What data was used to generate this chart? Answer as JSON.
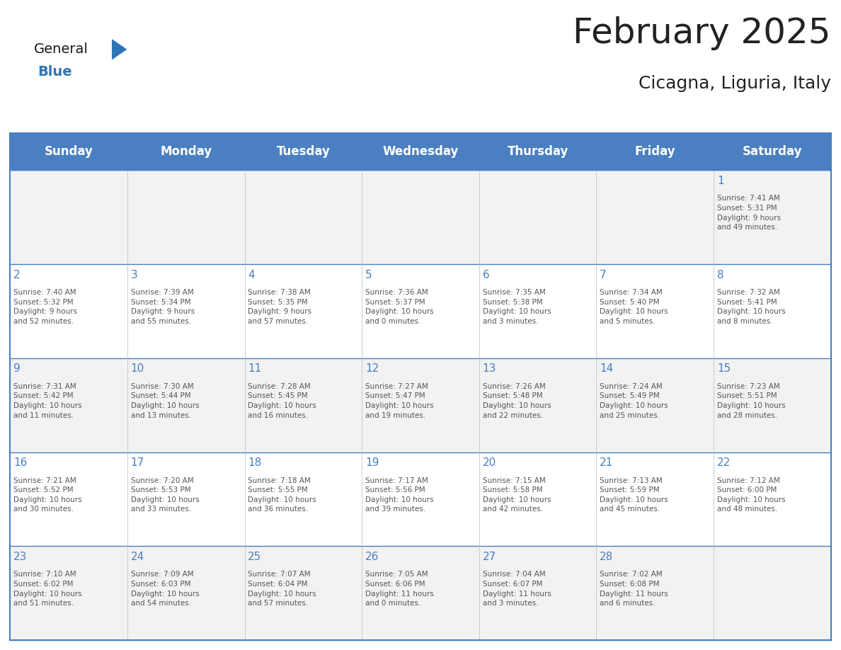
{
  "title": "February 2025",
  "subtitle": "Cicagna, Liguria, Italy",
  "days_of_week": [
    "Sunday",
    "Monday",
    "Tuesday",
    "Wednesday",
    "Thursday",
    "Friday",
    "Saturday"
  ],
  "header_bg": "#4a7fc1",
  "header_text": "#FFFFFF",
  "cell_bg_odd": "#F2F2F2",
  "cell_bg_even": "#FFFFFF",
  "border_color": "#4a7fc1",
  "day_number_color": "#4a7fc1",
  "text_color": "#555555",
  "title_color": "#222222",
  "line_color": "#4a7fc1",
  "weeks": [
    [
      {
        "day": null,
        "sunrise": null,
        "sunset": null,
        "daylight": null
      },
      {
        "day": null,
        "sunrise": null,
        "sunset": null,
        "daylight": null
      },
      {
        "day": null,
        "sunrise": null,
        "sunset": null,
        "daylight": null
      },
      {
        "day": null,
        "sunrise": null,
        "sunset": null,
        "daylight": null
      },
      {
        "day": null,
        "sunrise": null,
        "sunset": null,
        "daylight": null
      },
      {
        "day": null,
        "sunrise": null,
        "sunset": null,
        "daylight": null
      },
      {
        "day": 1,
        "sunrise": "7:41 AM",
        "sunset": "5:31 PM",
        "daylight": "9 hours\nand 49 minutes."
      }
    ],
    [
      {
        "day": 2,
        "sunrise": "7:40 AM",
        "sunset": "5:32 PM",
        "daylight": "9 hours\nand 52 minutes."
      },
      {
        "day": 3,
        "sunrise": "7:39 AM",
        "sunset": "5:34 PM",
        "daylight": "9 hours\nand 55 minutes."
      },
      {
        "day": 4,
        "sunrise": "7:38 AM",
        "sunset": "5:35 PM",
        "daylight": "9 hours\nand 57 minutes."
      },
      {
        "day": 5,
        "sunrise": "7:36 AM",
        "sunset": "5:37 PM",
        "daylight": "10 hours\nand 0 minutes."
      },
      {
        "day": 6,
        "sunrise": "7:35 AM",
        "sunset": "5:38 PM",
        "daylight": "10 hours\nand 3 minutes."
      },
      {
        "day": 7,
        "sunrise": "7:34 AM",
        "sunset": "5:40 PM",
        "daylight": "10 hours\nand 5 minutes."
      },
      {
        "day": 8,
        "sunrise": "7:32 AM",
        "sunset": "5:41 PM",
        "daylight": "10 hours\nand 8 minutes."
      }
    ],
    [
      {
        "day": 9,
        "sunrise": "7:31 AM",
        "sunset": "5:42 PM",
        "daylight": "10 hours\nand 11 minutes."
      },
      {
        "day": 10,
        "sunrise": "7:30 AM",
        "sunset": "5:44 PM",
        "daylight": "10 hours\nand 13 minutes."
      },
      {
        "day": 11,
        "sunrise": "7:28 AM",
        "sunset": "5:45 PM",
        "daylight": "10 hours\nand 16 minutes."
      },
      {
        "day": 12,
        "sunrise": "7:27 AM",
        "sunset": "5:47 PM",
        "daylight": "10 hours\nand 19 minutes."
      },
      {
        "day": 13,
        "sunrise": "7:26 AM",
        "sunset": "5:48 PM",
        "daylight": "10 hours\nand 22 minutes."
      },
      {
        "day": 14,
        "sunrise": "7:24 AM",
        "sunset": "5:49 PM",
        "daylight": "10 hours\nand 25 minutes."
      },
      {
        "day": 15,
        "sunrise": "7:23 AM",
        "sunset": "5:51 PM",
        "daylight": "10 hours\nand 28 minutes."
      }
    ],
    [
      {
        "day": 16,
        "sunrise": "7:21 AM",
        "sunset": "5:52 PM",
        "daylight": "10 hours\nand 30 minutes."
      },
      {
        "day": 17,
        "sunrise": "7:20 AM",
        "sunset": "5:53 PM",
        "daylight": "10 hours\nand 33 minutes."
      },
      {
        "day": 18,
        "sunrise": "7:18 AM",
        "sunset": "5:55 PM",
        "daylight": "10 hours\nand 36 minutes."
      },
      {
        "day": 19,
        "sunrise": "7:17 AM",
        "sunset": "5:56 PM",
        "daylight": "10 hours\nand 39 minutes."
      },
      {
        "day": 20,
        "sunrise": "7:15 AM",
        "sunset": "5:58 PM",
        "daylight": "10 hours\nand 42 minutes."
      },
      {
        "day": 21,
        "sunrise": "7:13 AM",
        "sunset": "5:59 PM",
        "daylight": "10 hours\nand 45 minutes."
      },
      {
        "day": 22,
        "sunrise": "7:12 AM",
        "sunset": "6:00 PM",
        "daylight": "10 hours\nand 48 minutes."
      }
    ],
    [
      {
        "day": 23,
        "sunrise": "7:10 AM",
        "sunset": "6:02 PM",
        "daylight": "10 hours\nand 51 minutes."
      },
      {
        "day": 24,
        "sunrise": "7:09 AM",
        "sunset": "6:03 PM",
        "daylight": "10 hours\nand 54 minutes."
      },
      {
        "day": 25,
        "sunrise": "7:07 AM",
        "sunset": "6:04 PM",
        "daylight": "10 hours\nand 57 minutes."
      },
      {
        "day": 26,
        "sunrise": "7:05 AM",
        "sunset": "6:06 PM",
        "daylight": "11 hours\nand 0 minutes."
      },
      {
        "day": 27,
        "sunrise": "7:04 AM",
        "sunset": "6:07 PM",
        "daylight": "11 hours\nand 3 minutes."
      },
      {
        "day": 28,
        "sunrise": "7:02 AM",
        "sunset": "6:08 PM",
        "daylight": "11 hours\nand 6 minutes."
      },
      {
        "day": null,
        "sunrise": null,
        "sunset": null,
        "daylight": null
      }
    ]
  ],
  "logo_color_general": "#1a1a1a",
  "logo_color_blue": "#2E75B6",
  "logo_triangle_color": "#2E75B6",
  "title_fontsize": 36,
  "subtitle_fontsize": 18,
  "header_fontsize": 12,
  "day_num_fontsize": 11,
  "cell_text_fontsize": 7.5
}
